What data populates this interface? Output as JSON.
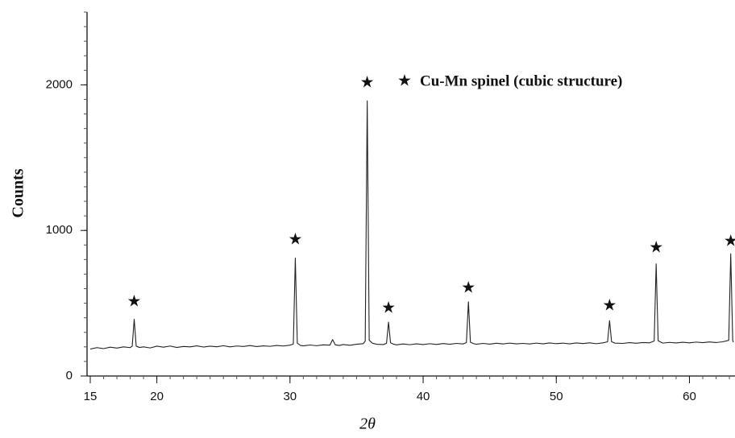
{
  "chart_data": {
    "type": "line",
    "x_label": "2θ",
    "y_label": "Counts",
    "x": [
      15,
      15.5,
      16,
      16.5,
      17,
      17.5,
      18,
      18.15,
      18.3,
      18.45,
      18.7,
      19,
      19.5,
      20,
      20.5,
      21,
      21.5,
      22,
      22.5,
      23,
      23.5,
      24,
      24.5,
      25,
      25.5,
      26,
      26.5,
      27,
      27.5,
      28,
      28.5,
      29,
      29.5,
      30,
      30.25,
      30.4,
      30.55,
      30.8,
      31,
      31.5,
      32,
      32.5,
      33,
      33.2,
      33.4,
      33.7,
      34,
      34.5,
      35,
      35.5,
      35.65,
      35.8,
      35.95,
      36.2,
      36.5,
      37,
      37.25,
      37.4,
      37.55,
      37.8,
      38,
      38.5,
      39,
      39.5,
      40,
      40.5,
      41,
      41.5,
      42,
      42.5,
      43,
      43.25,
      43.4,
      43.55,
      43.8,
      44,
      44.5,
      45,
      45.5,
      46,
      46.5,
      47,
      47.5,
      48,
      48.5,
      49,
      49.5,
      50,
      50.5,
      51,
      51.5,
      52,
      52.5,
      53,
      53.5,
      53.85,
      54,
      54.15,
      54.4,
      55,
      55.5,
      56,
      56.5,
      57,
      57.35,
      57.5,
      57.65,
      57.9,
      58,
      58.5,
      59,
      59.5,
      60,
      60.5,
      61,
      61.5,
      62,
      62.5,
      62.95,
      63.1,
      63.25,
      63.3
    ],
    "series": [
      {
        "color": "#222222",
        "values": [
          185,
          195,
          188,
          198,
          192,
          200,
          195,
          205,
          390,
          205,
          196,
          200,
          193,
          205,
          198,
          206,
          196,
          203,
          200,
          207,
          199,
          205,
          201,
          208,
          200,
          206,
          203,
          209,
          202,
          207,
          204,
          210,
          206,
          212,
          220,
          810,
          225,
          210,
          207,
          213,
          208,
          214,
          212,
          250,
          214,
          210,
          216,
          211,
          218,
          222,
          240,
          1890,
          245,
          225,
          218,
          216,
          225,
          370,
          228,
          218,
          214,
          220,
          215,
          221,
          216,
          222,
          217,
          223,
          218,
          224,
          220,
          230,
          510,
          232,
          222,
          218,
          224,
          219,
          225,
          220,
          226,
          221,
          224,
          220,
          226,
          221,
          227,
          222,
          226,
          221,
          227,
          223,
          228,
          222,
          228,
          235,
          380,
          236,
          226,
          224,
          229,
          225,
          230,
          228,
          240,
          770,
          242,
          230,
          226,
          231,
          227,
          232,
          228,
          233,
          229,
          234,
          230,
          235,
          245,
          840,
          245,
          232
        ]
      }
    ],
    "peak_markers": {
      "label": "★",
      "x": [
        18.3,
        30.4,
        35.8,
        37.4,
        43.4,
        54.0,
        57.5,
        63.1
      ],
      "y": [
        508,
        934,
        2011,
        464,
        602,
        481,
        878,
        923
      ]
    },
    "legend": {
      "symbol": "★",
      "text": "Cu-Mn spinel (cubic structure)"
    },
    "xlim": [
      15,
      63.3
    ],
    "ylim": [
      0,
      2500
    ],
    "xticks": [
      15,
      20,
      30,
      40,
      50,
      60
    ],
    "yticks": [
      0,
      1000,
      2000
    ]
  }
}
